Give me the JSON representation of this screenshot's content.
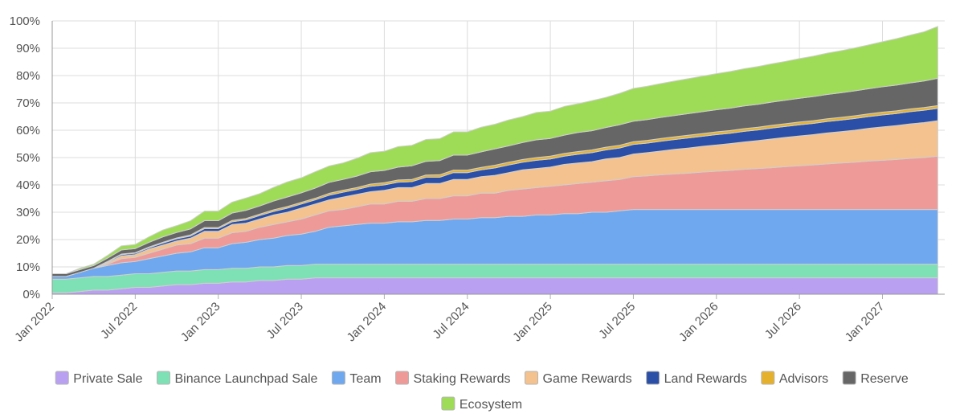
{
  "chart_data": {
    "type": "area",
    "stacked": true,
    "title": "",
    "xlabel": "",
    "ylabel": "",
    "ylim": [
      0,
      100
    ],
    "y_ticks": [
      "0%",
      "10%",
      "20%",
      "30%",
      "40%",
      "50%",
      "60%",
      "70%",
      "80%",
      "90%",
      "100%"
    ],
    "x_ticks": [
      {
        "label": "Jan 2022",
        "month": 0
      },
      {
        "label": "Jul 2022",
        "month": 6
      },
      {
        "label": "Jan 2023",
        "month": 12
      },
      {
        "label": "Jul 2023",
        "month": 18
      },
      {
        "label": "Jan 2024",
        "month": 24
      },
      {
        "label": "Jul 2024",
        "month": 30
      },
      {
        "label": "Jan 2025",
        "month": 36
      },
      {
        "label": "Jul 2025",
        "month": 42
      },
      {
        "label": "Jan 2026",
        "month": 48
      },
      {
        "label": "Jul 2026",
        "month": 54
      },
      {
        "label": "Jan 2027",
        "month": 60
      }
    ],
    "x_months": [
      0,
      1,
      2,
      3,
      4,
      5,
      6,
      7,
      8,
      9,
      10,
      11,
      12,
      13,
      14,
      15,
      16,
      17,
      18,
      19,
      20,
      21,
      22,
      23,
      24,
      25,
      26,
      27,
      28,
      29,
      30,
      31,
      32,
      33,
      34,
      35,
      36,
      37,
      38,
      39,
      40,
      41,
      42,
      43,
      44,
      45,
      46,
      47,
      48,
      49,
      50,
      51,
      52,
      53,
      54,
      55,
      56,
      57,
      58,
      59,
      60,
      61,
      62,
      63,
      64
    ],
    "x_range_months": [
      0,
      64.5
    ],
    "legend_position": "bottom",
    "grid": true,
    "series": [
      {
        "name": "Private Sale",
        "color": "#b9a0f0",
        "values": [
          0.5,
          0.5,
          1.0,
          1.5,
          1.5,
          2.0,
          2.5,
          2.5,
          3.0,
          3.5,
          3.5,
          4.0,
          4.0,
          4.5,
          4.5,
          5.0,
          5.0,
          5.5,
          5.5,
          6.0,
          6,
          6,
          6,
          6,
          6,
          6,
          6,
          6,
          6,
          6,
          6,
          6,
          6,
          6,
          6,
          6,
          6,
          6,
          6,
          6,
          6,
          6,
          6,
          6,
          6,
          6,
          6,
          6,
          6,
          6,
          6,
          6,
          6,
          6,
          6,
          6,
          6,
          6,
          6,
          6,
          6,
          6,
          6,
          6,
          6
        ]
      },
      {
        "name": "Binance Launchpad Sale",
        "color": "#7ee0b5",
        "values": [
          5.0,
          5.0,
          5.0,
          5.0,
          5.0,
          5.0,
          5.0,
          5.0,
          5.0,
          5.0,
          5.0,
          5.0,
          5.0,
          5.0,
          5.0,
          5.0,
          5.0,
          5.0,
          5.0,
          5.0,
          5,
          5,
          5,
          5,
          5,
          5,
          5,
          5,
          5,
          5,
          5,
          5,
          5,
          5,
          5,
          5,
          5,
          5,
          5,
          5,
          5,
          5,
          5,
          5,
          5,
          5,
          5,
          5,
          5,
          5,
          5,
          5,
          5,
          5,
          5,
          5,
          5,
          5,
          5,
          5,
          5,
          5,
          5,
          5,
          5
        ]
      },
      {
        "name": "Team",
        "color": "#6fa8ef",
        "values": [
          1.0,
          1.0,
          2.0,
          3.0,
          4.0,
          4.5,
          4.5,
          5.5,
          6.0,
          6.5,
          7.0,
          8.0,
          8.0,
          9.0,
          9.5,
          10.0,
          10.5,
          11.0,
          11.5,
          12.0,
          13.5,
          14.0,
          14.5,
          15.0,
          15.0,
          15.5,
          15.5,
          16.0,
          16.0,
          16.5,
          16.5,
          17.0,
          17.0,
          17.5,
          17.5,
          18.0,
          18.0,
          18.5,
          18.5,
          19.0,
          19.0,
          19.5,
          20,
          20,
          20,
          20,
          20,
          20,
          20,
          20,
          20,
          20,
          20,
          20,
          20,
          20,
          20,
          20,
          20,
          20,
          20,
          20,
          20,
          20,
          20
        ]
      },
      {
        "name": "Staking Rewards",
        "color": "#ee9a98",
        "values": [
          0,
          0,
          0,
          0,
          0.5,
          1.5,
          1.5,
          2.0,
          2.5,
          3.0,
          3.0,
          3.5,
          3.5,
          4.0,
          4.0,
          4.5,
          5.0,
          5.0,
          5.5,
          6.0,
          6.0,
          6.0,
          6.5,
          7.0,
          7.0,
          7.5,
          7.5,
          8.0,
          8.0,
          8.5,
          8.5,
          9.0,
          9.0,
          9.5,
          10.0,
          10.0,
          10.5,
          10.5,
          11.0,
          11.0,
          11.5,
          11.5,
          12.0,
          12.3,
          12.7,
          13.0,
          13.3,
          13.7,
          14.0,
          14.3,
          14.7,
          15.0,
          15.3,
          15.7,
          16.0,
          16.3,
          16.7,
          17.0,
          17.3,
          17.7,
          18.0,
          18.3,
          18.7,
          19.0,
          19.5
        ]
      },
      {
        "name": "Game Rewards",
        "color": "#f3c28e",
        "values": [
          0,
          0,
          0,
          0,
          0.5,
          1.0,
          1.0,
          1.5,
          1.5,
          1.5,
          2.0,
          2.5,
          2.5,
          3.0,
          3.0,
          3.0,
          3.5,
          3.5,
          4.0,
          4.0,
          4.0,
          4.5,
          4.5,
          4.5,
          5.0,
          5.0,
          5.0,
          5.5,
          5.5,
          6.0,
          6.0,
          6.0,
          6.5,
          6.5,
          7.0,
          7.0,
          7.0,
          7.5,
          7.5,
          7.5,
          8.0,
          8.0,
          8.3,
          8.5,
          8.7,
          9.0,
          9.2,
          9.4,
          9.6,
          9.8,
          10.0,
          10.2,
          10.5,
          10.7,
          10.9,
          11.1,
          11.3,
          11.5,
          11.7,
          12.0,
          12.2,
          12.4,
          12.6,
          12.8,
          13.0
        ]
      },
      {
        "name": "Land Rewards",
        "color": "#2b4fa6",
        "values": [
          0,
          0,
          0,
          0,
          0.3,
          0.5,
          0.5,
          0.5,
          0.7,
          0.8,
          0.8,
          1.0,
          1.0,
          1.0,
          1.2,
          1.3,
          1.3,
          1.5,
          1.5,
          1.5,
          1.7,
          1.8,
          1.8,
          2.0,
          2.0,
          2.0,
          2.2,
          2.3,
          2.3,
          2.5,
          2.5,
          2.5,
          2.7,
          2.8,
          2.8,
          3.0,
          3.0,
          3.0,
          3.2,
          3.3,
          3.3,
          3.5,
          3.5,
          3.5,
          3.6,
          3.6,
          3.7,
          3.7,
          3.8,
          3.8,
          3.9,
          3.9,
          4.0,
          4.0,
          4.1,
          4.1,
          4.2,
          4.2,
          4.3,
          4.3,
          4.4,
          4.4,
          4.5,
          4.5,
          4.5
        ]
      },
      {
        "name": "Advisors",
        "color": "#e5b12d",
        "values": [
          0,
          0,
          0,
          0,
          0.2,
          0.2,
          0.2,
          0.3,
          0.3,
          0.3,
          0.4,
          0.4,
          0.4,
          0.5,
          0.5,
          0.5,
          0.6,
          0.6,
          0.6,
          0.6,
          0.7,
          0.7,
          0.7,
          0.8,
          0.8,
          0.8,
          0.8,
          0.8,
          0.9,
          0.9,
          0.9,
          0.9,
          1.0,
          1.0,
          1.0,
          1.0,
          1.0,
          1.0,
          1.0,
          1.0,
          1.0,
          1.0,
          1.0,
          1.0,
          1.0,
          1.0,
          1.0,
          1.0,
          1.0,
          1.0,
          1.0,
          1.0,
          1.0,
          1.0,
          1.0,
          1.0,
          1.0,
          1.0,
          1.0,
          1.0,
          1.0,
          1.0,
          1.0,
          1.0,
          1.0
        ]
      },
      {
        "name": "Reserve",
        "color": "#666666",
        "values": [
          1.0,
          1.0,
          1.0,
          1.0,
          1.2,
          1.5,
          1.5,
          1.7,
          2.0,
          2.0,
          2.2,
          2.5,
          2.5,
          2.7,
          3.0,
          3.0,
          3.2,
          3.5,
          3.5,
          3.7,
          4.0,
          4.0,
          4.2,
          4.5,
          4.5,
          4.7,
          5.0,
          5.0,
          5.2,
          5.5,
          5.5,
          5.7,
          6.0,
          6.0,
          6.2,
          6.5,
          6.5,
          6.7,
          7.0,
          7.0,
          7.2,
          7.5,
          7.5,
          7.6,
          7.7,
          7.8,
          7.9,
          8.0,
          8.1,
          8.2,
          8.3,
          8.4,
          8.5,
          8.6,
          8.7,
          8.8,
          8.9,
          9.0,
          9.1,
          9.2,
          9.3,
          9.4,
          9.5,
          9.7,
          10.0
        ]
      },
      {
        "name": "Ecosystem",
        "color": "#9edb56",
        "values": [
          0,
          0,
          0.5,
          0.5,
          1.0,
          1.5,
          1.5,
          2.0,
          2.5,
          2.5,
          3.0,
          3.5,
          3.5,
          4.0,
          4.5,
          4.5,
          5.0,
          5.5,
          5.5,
          6.0,
          6.0,
          6.0,
          6.5,
          7.0,
          7.0,
          7.5,
          7.5,
          8.0,
          8.0,
          8.5,
          8.5,
          9.0,
          9.0,
          9.5,
          9.5,
          10.0,
          10.0,
          10.5,
          10.5,
          11.0,
          11.0,
          11.5,
          12.0,
          12.2,
          12.4,
          12.6,
          12.8,
          13.0,
          13.2,
          13.4,
          13.6,
          13.8,
          14.0,
          14.2,
          14.5,
          14.8,
          15.1,
          15.4,
          15.7,
          16.0,
          16.5,
          17.0,
          17.5,
          18.0,
          19.0
        ]
      }
    ]
  }
}
